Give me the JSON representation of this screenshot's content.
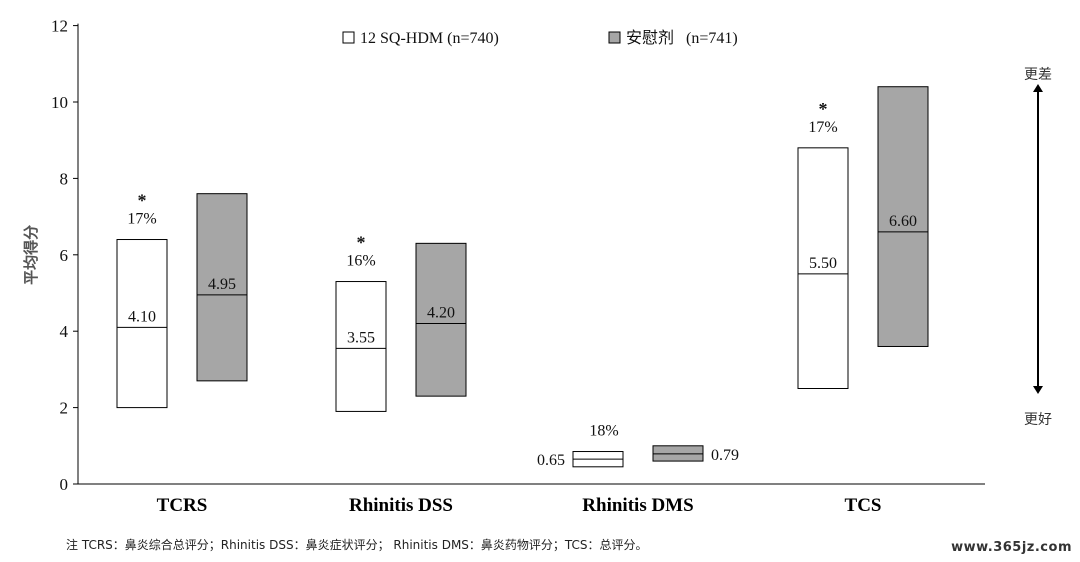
{
  "chart_data": {
    "type": "bar",
    "subtype": "floating-range-with-median",
    "title": "",
    "xlabel": "",
    "ylabel": "平均得分",
    "ylim": [
      0,
      12
    ],
    "yticks": [
      0,
      2,
      4,
      6,
      8,
      10,
      12
    ],
    "grid": false,
    "legend_position": "top-center",
    "categories": [
      "TCRS",
      "Rhinitis DSS",
      "Rhinitis DMS",
      "TCS"
    ],
    "series": [
      {
        "name": "12 SQ-HDM (n=740)",
        "color": "#ffffff",
        "low": [
          2.0,
          1.9,
          0.45,
          2.5
        ],
        "high": [
          6.4,
          5.3,
          0.85,
          8.8
        ],
        "median": [
          4.1,
          3.55,
          0.65,
          5.5
        ],
        "labels": [
          "4.10",
          "3.55",
          "0.65",
          "5.50"
        ]
      },
      {
        "name": "安慰剂   (n=741)",
        "color": "#a6a6a6",
        "low": [
          2.7,
          2.3,
          0.6,
          3.6
        ],
        "high": [
          7.6,
          6.3,
          1.0,
          10.4
        ],
        "median": [
          4.95,
          4.2,
          0.79,
          6.6
        ],
        "labels": [
          "4.95",
          "4.20",
          "0.79",
          "6.60"
        ]
      }
    ],
    "annotations": [
      {
        "category": "TCRS",
        "star": "*",
        "text": "17%"
      },
      {
        "category": "Rhinitis DSS",
        "star": "*",
        "text": "16%"
      },
      {
        "category": "Rhinitis DMS",
        "star": "",
        "text": "18%"
      },
      {
        "category": "TCS",
        "star": "*",
        "text": "17%"
      }
    ],
    "direction_arrow": {
      "top": "更差",
      "bottom": "更好"
    }
  },
  "footnote": "注  TCRS：鼻炎综合总评分；Rhinitis DSS：鼻炎症状评分；  Rhinitis DMS：鼻炎药物评分；TCS：总评分。",
  "watermark": "www.365jz.com"
}
